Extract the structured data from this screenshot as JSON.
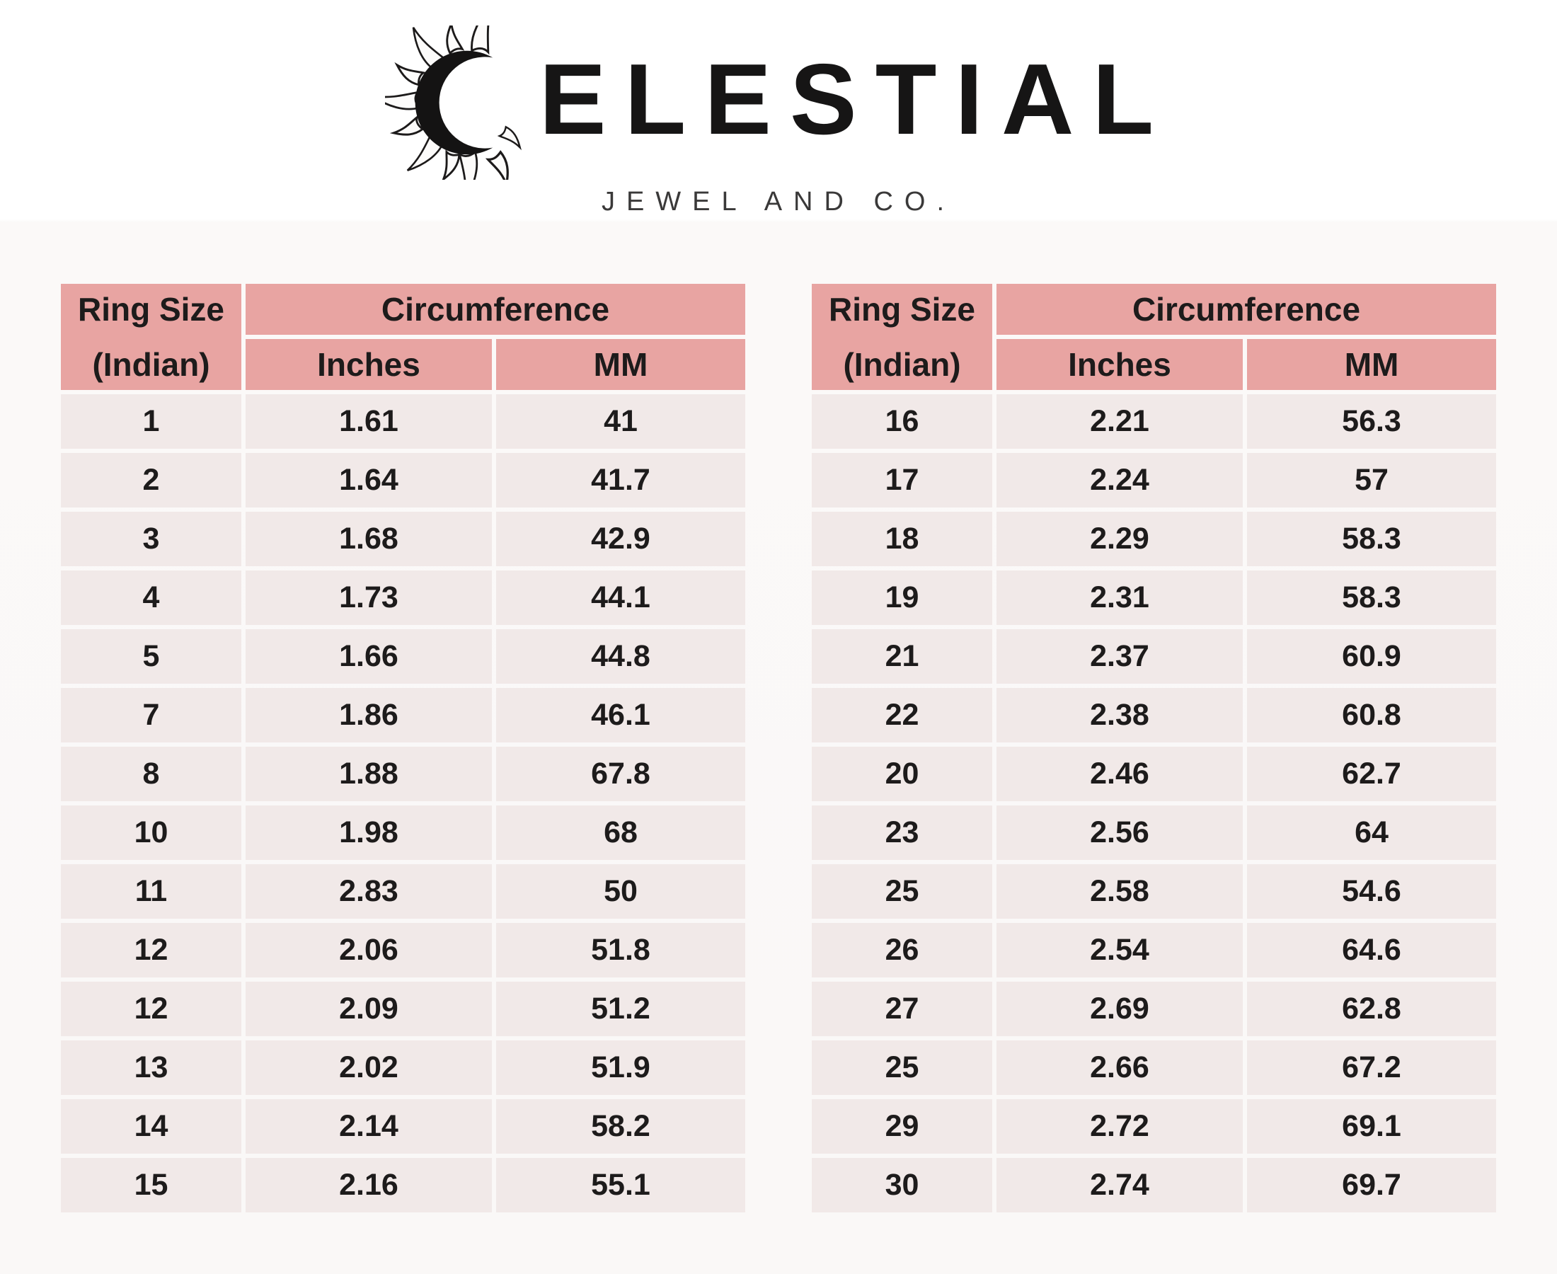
{
  "logo": {
    "brand": "CELESTIAL",
    "brand_after_initial": "ELESTIAL",
    "tagline": "JEWEL AND CO.",
    "icon": "sun-crescent-icon"
  },
  "table_headers": {
    "ring_size": "Ring Size",
    "ring_size_unit": "(Indian)",
    "circumference": "Circumference",
    "inches": "Inches",
    "mm": "MM"
  },
  "left_table": {
    "rows": [
      [
        "1",
        "1.61",
        "41"
      ],
      [
        "2",
        "1.64",
        "41.7"
      ],
      [
        "3",
        "1.68",
        "42.9"
      ],
      [
        "4",
        "1.73",
        "44.1"
      ],
      [
        "5",
        "1.66",
        "44.8"
      ],
      [
        "7",
        "1.86",
        "46.1"
      ],
      [
        "8",
        "1.88",
        "67.8"
      ],
      [
        "10",
        "1.98",
        "68"
      ],
      [
        "11",
        "2.83",
        "50"
      ],
      [
        "12",
        "2.06",
        "51.8"
      ],
      [
        "12",
        "2.09",
        "51.2"
      ],
      [
        "13",
        "2.02",
        "51.9"
      ],
      [
        "14",
        "2.14",
        "58.2"
      ],
      [
        "15",
        "2.16",
        "55.1"
      ]
    ]
  },
  "right_table": {
    "rows": [
      [
        "16",
        "2.21",
        "56.3"
      ],
      [
        "17",
        "2.24",
        "57"
      ],
      [
        "18",
        "2.29",
        "58.3"
      ],
      [
        "19",
        "2.31",
        "58.3"
      ],
      [
        "21",
        "2.37",
        "60.9"
      ],
      [
        "22",
        "2.38",
        "60.8"
      ],
      [
        "20",
        "2.46",
        "62.7"
      ],
      [
        "23",
        "2.56",
        "64"
      ],
      [
        "25",
        "2.58",
        "54.6"
      ],
      [
        "26",
        "2.54",
        "64.6"
      ],
      [
        "27",
        "2.69",
        "62.8"
      ],
      [
        "25",
        "2.66",
        "67.2"
      ],
      [
        "29",
        "2.72",
        "69.1"
      ],
      [
        "30",
        "2.74",
        "69.7"
      ]
    ]
  },
  "colors": {
    "header_bg": "#e8a4a2",
    "row_bg": "#f1e9e8",
    "divider": "#fdfcfc",
    "page_bg": "#faf8f7",
    "text": "#1d1b1b"
  }
}
